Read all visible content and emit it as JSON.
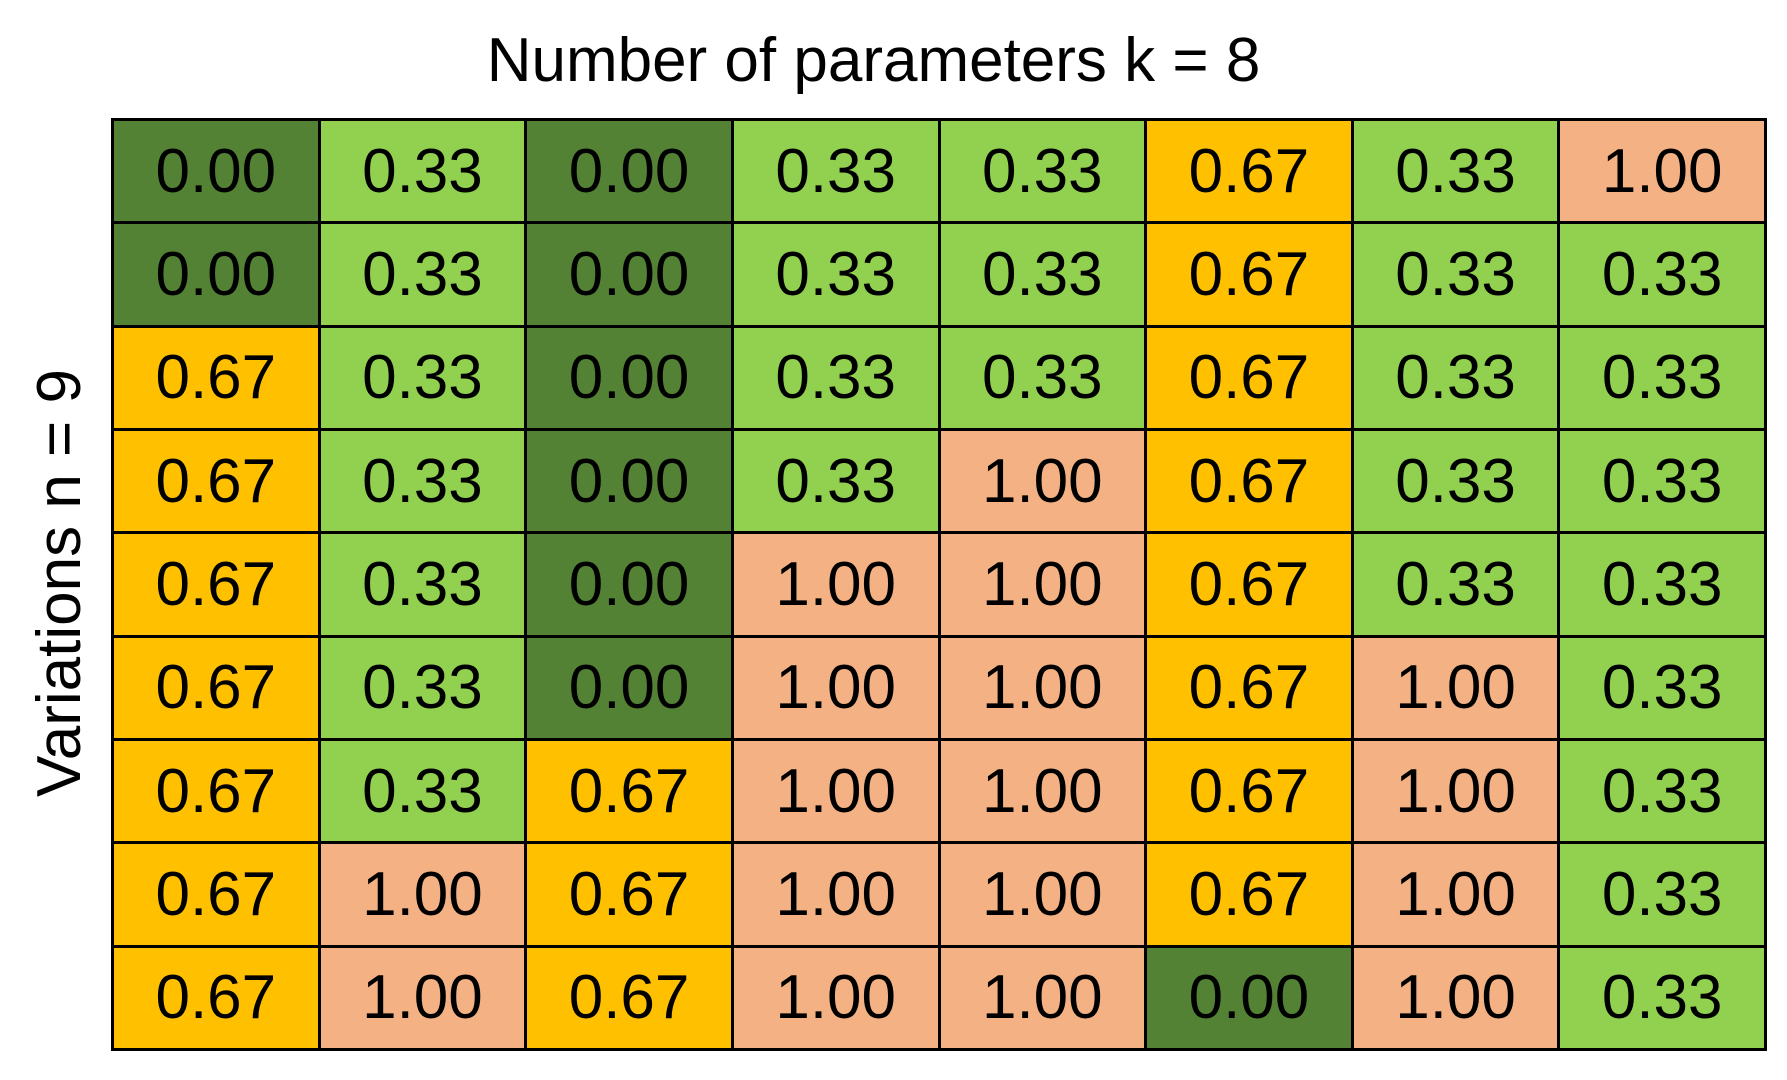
{
  "title": "Number of parameters k = 8",
  "ylabel": "Variations n = 9",
  "colors": {
    "0.00": "#548235",
    "0.33": "#92d050",
    "0.67": "#ffc000",
    "1.00": "#f4b183"
  },
  "table": {
    "rows": [
      [
        "0.00",
        "0.33",
        "0.00",
        "0.33",
        "0.33",
        "0.67",
        "0.33",
        "1.00"
      ],
      [
        "0.00",
        "0.33",
        "0.00",
        "0.33",
        "0.33",
        "0.67",
        "0.33",
        "0.33"
      ],
      [
        "0.67",
        "0.33",
        "0.00",
        "0.33",
        "0.33",
        "0.67",
        "0.33",
        "0.33"
      ],
      [
        "0.67",
        "0.33",
        "0.00",
        "0.33",
        "1.00",
        "0.67",
        "0.33",
        "0.33"
      ],
      [
        "0.67",
        "0.33",
        "0.00",
        "1.00",
        "1.00",
        "0.67",
        "0.33",
        "0.33"
      ],
      [
        "0.67",
        "0.33",
        "0.00",
        "1.00",
        "1.00",
        "0.67",
        "1.00",
        "0.33"
      ],
      [
        "0.67",
        "0.33",
        "0.67",
        "1.00",
        "1.00",
        "0.67",
        "1.00",
        "0.33"
      ],
      [
        "0.67",
        "1.00",
        "0.67",
        "1.00",
        "1.00",
        "0.67",
        "1.00",
        "0.33"
      ],
      [
        "0.67",
        "1.00",
        "0.67",
        "1.00",
        "1.00",
        "0.00",
        "1.00",
        "0.33"
      ]
    ]
  }
}
